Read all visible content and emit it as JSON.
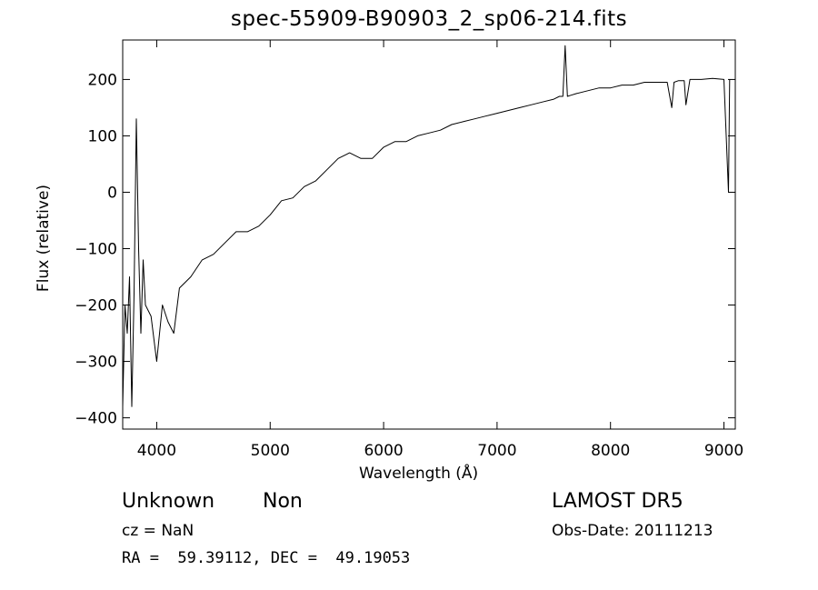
{
  "chart_data": {
    "type": "line",
    "title": "spec-55909-B90903_2_sp06-214.fits",
    "xlabel": "Wavelength (Å)",
    "ylabel": "Flux (relative)",
    "xlim": [
      3700,
      9100
    ],
    "ylim": [
      -420,
      270
    ],
    "xticks": [
      4000,
      5000,
      6000,
      7000,
      8000,
      9000
    ],
    "yticks": [
      -400,
      -300,
      -200,
      -100,
      0,
      100,
      200
    ],
    "grid": false,
    "series": [
      {
        "x": [
          3700,
          3720,
          3740,
          3760,
          3780,
          3800,
          3820,
          3840,
          3860,
          3880,
          3900,
          3950,
          4000,
          4050,
          4100,
          4150,
          4200,
          4300,
          4400,
          4500,
          4600,
          4700,
          4800,
          4900,
          5000,
          5100,
          5200,
          5300,
          5400,
          5500,
          5600,
          5700,
          5800,
          5900,
          6000,
          6100,
          6200,
          6300,
          6400,
          6500,
          6600,
          6700,
          6800,
          6900,
          7000,
          7100,
          7200,
          7300,
          7400,
          7500,
          7550,
          7580,
          7600,
          7620,
          7650,
          7700,
          7800,
          7900,
          8000,
          8100,
          8200,
          8300,
          8400,
          8500,
          8540,
          8560,
          8600,
          8650,
          8665,
          8700,
          8800,
          8900,
          9000,
          9040,
          9050
        ],
        "y": [
          -380,
          -200,
          -250,
          -150,
          -380,
          -180,
          130,
          -100,
          -250,
          -120,
          -200,
          -220,
          -300,
          -200,
          -230,
          -250,
          -170,
          -150,
          -120,
          -110,
          -90,
          -70,
          -70,
          -60,
          -40,
          -15,
          -10,
          10,
          20,
          40,
          60,
          70,
          60,
          60,
          80,
          90,
          90,
          100,
          105,
          110,
          120,
          125,
          130,
          135,
          140,
          145,
          150,
          155,
          160,
          165,
          170,
          170,
          260,
          170,
          172,
          175,
          180,
          185,
          185,
          190,
          190,
          195,
          195,
          195,
          150,
          195,
          198,
          198,
          155,
          200,
          200,
          202,
          200,
          0,
          200
        ]
      }
    ]
  },
  "info": {
    "object_class": "Unknown",
    "subclass": "Non",
    "survey": "LAMOST DR5",
    "cz": "cz = NaN",
    "obs_date": "Obs-Date: 20111213",
    "coords": "RA =  59.39112, DEC =  49.19053"
  }
}
